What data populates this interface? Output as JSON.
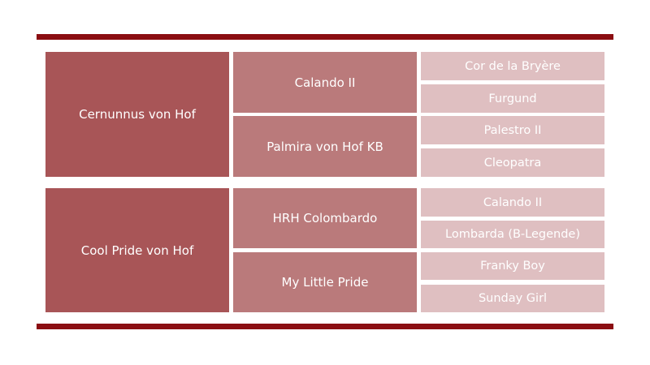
{
  "colors": {
    "bar": "#8b0e12",
    "parent": "#a85557",
    "grandparent": "#ba7a7b",
    "great_grandparent": "#dfbfc1"
  },
  "sire": {
    "name": "Cernunnus von Hof",
    "sire": {
      "name": "Calando II",
      "sire": "Cor de la Bryère",
      "dam": "Furgund"
    },
    "dam": {
      "name": "Palmira von Hof KB",
      "sire": "Palestro II",
      "dam": "Cleopatra"
    }
  },
  "dam": {
    "name": "Cool Pride von Hof",
    "sire": {
      "name": "HRH Colombardo",
      "sire": "Calando II",
      "dam": "Lombarda (B-Legende)"
    },
    "dam": {
      "name": "My Little Pride",
      "sire": "Franky Boy",
      "dam": "Sunday Girl"
    }
  }
}
